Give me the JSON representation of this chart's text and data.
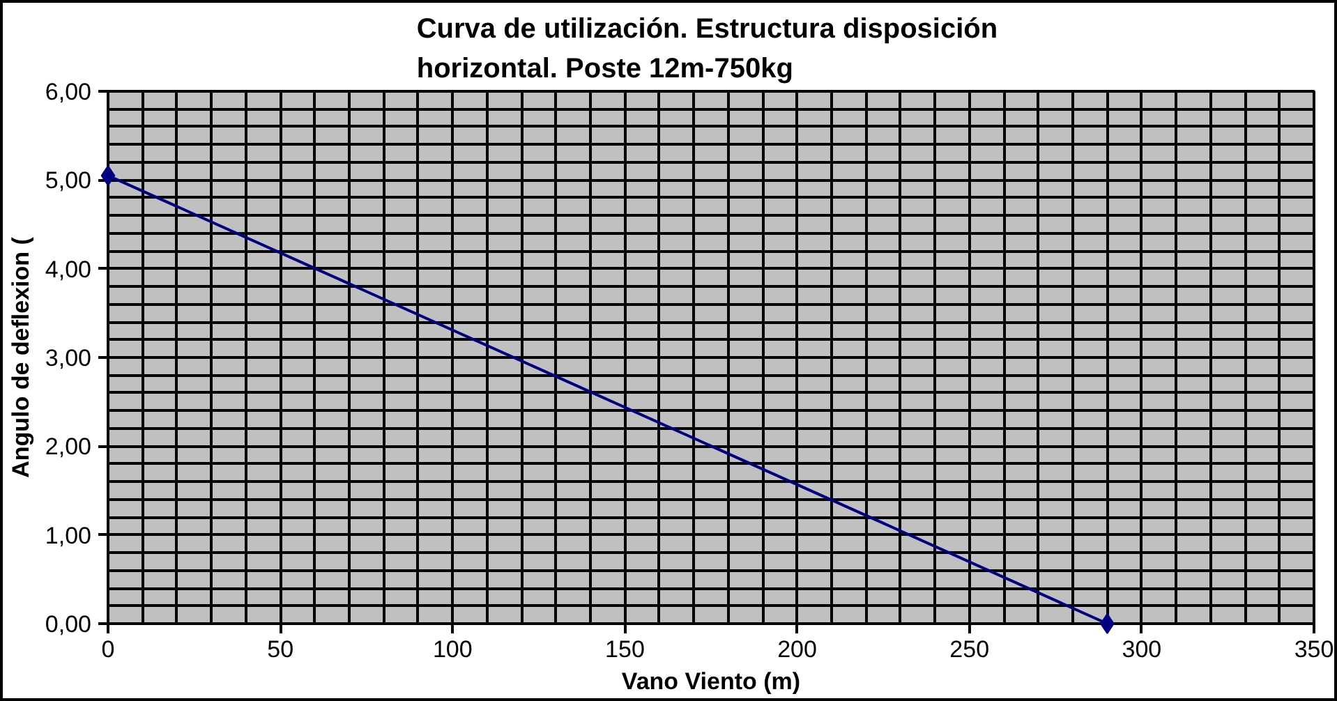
{
  "chart_data": {
    "type": "line",
    "title": "Curva de utilización.  Estructura disposición\nhorizontal.  Poste 12m-750kg",
    "xlabel": "Vano Viento (m)",
    "ylabel": "Angulo de deflexion (",
    "x": [
      0,
      290
    ],
    "series": [
      {
        "color": "#000080",
        "values": [
          5.05,
          0
        ]
      }
    ],
    "xlim": [
      0,
      350
    ],
    "xticks": [
      0,
      50,
      100,
      150,
      200,
      250,
      300,
      350
    ],
    "ylim": [
      0,
      6
    ],
    "yticks": [
      {
        "value": 0,
        "label": "0,00"
      },
      {
        "value": 1,
        "label": "1,00"
      },
      {
        "value": 2,
        "label": "2,00"
      },
      {
        "value": 3,
        "label": "3,00"
      },
      {
        "value": 4,
        "label": "4,00"
      },
      {
        "value": 5,
        "label": "5,00"
      },
      {
        "value": 6,
        "label": "6,00"
      }
    ],
    "grid": true,
    "marker": "diamond",
    "line_style": "solid"
  }
}
